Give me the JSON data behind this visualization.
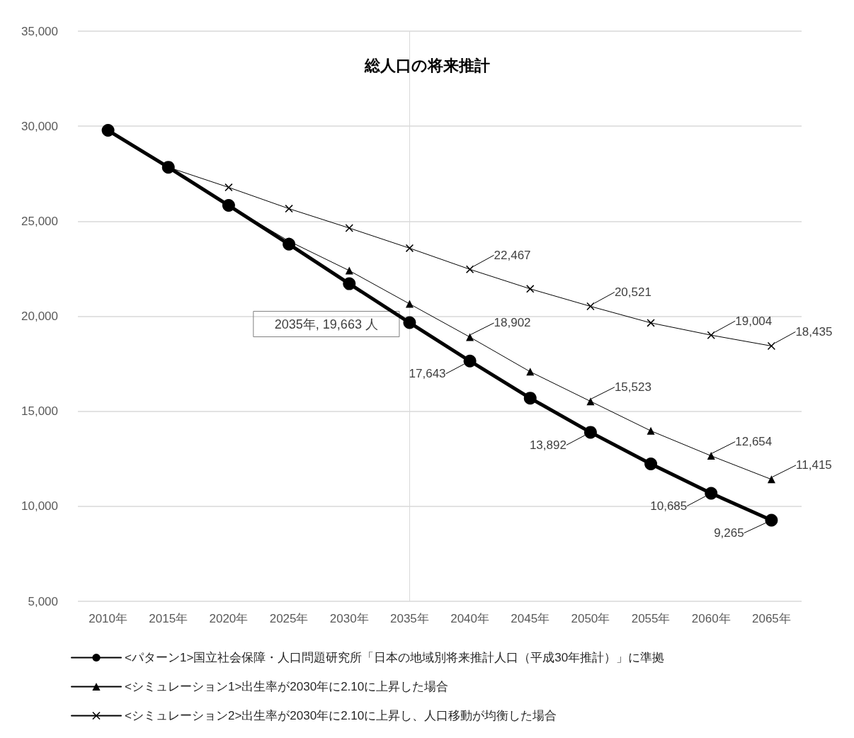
{
  "chart_data": {
    "type": "line",
    "title": "総人口の将来推計",
    "categories": [
      "2010年",
      "2015年",
      "2020年",
      "2025年",
      "2030年",
      "2035年",
      "2040年",
      "2045年",
      "2050年",
      "2055年",
      "2060年",
      "2065年"
    ],
    "ylim": [
      5000,
      35000
    ],
    "yticks": [
      {
        "value": 5000,
        "label": "5,000"
      },
      {
        "value": 10000,
        "label": "10,000"
      },
      {
        "value": 15000,
        "label": "15,000"
      },
      {
        "value": 20000,
        "label": "20,000"
      },
      {
        "value": 25000,
        "label": "25,000"
      },
      {
        "value": 30000,
        "label": "30,000"
      },
      {
        "value": 35000,
        "label": "35,000"
      }
    ],
    "grid": "y",
    "legend": "bottom",
    "line_style": "solid",
    "series": [
      {
        "name": "<パターン1>国立社会保障・人口問題研究所「日本の地域別将来推計人口（平成30年推計）」に準拠",
        "color": "#000000",
        "marker": "circle",
        "values": [
          29780,
          27840,
          25830,
          23790,
          21710,
          19663,
          17643,
          15690,
          13892,
          12230,
          10685,
          9265
        ],
        "value_labels": [
          null,
          null,
          null,
          null,
          null,
          null,
          "17,643",
          null,
          "13,892",
          null,
          "10,685",
          "9,265"
        ]
      },
      {
        "name": "<シミュレーション1>出生率が2030年に2.10に上昇した場合",
        "color": "#000000",
        "marker": "triangle",
        "values": [
          null,
          null,
          25830,
          23950,
          22400,
          20650,
          18902,
          17080,
          15523,
          13970,
          12654,
          11415
        ],
        "value_labels": [
          null,
          null,
          null,
          null,
          null,
          null,
          "18,902",
          null,
          "15,523",
          null,
          "12,654",
          "11,415"
        ]
      },
      {
        "name": "<シミュレーション2>出生率が2030年に2.10に上昇し、人口移動が均衡した場合",
        "color": "#000000",
        "marker": "cross",
        "values": [
          null,
          27840,
          26780,
          25660,
          24640,
          23580,
          22467,
          21440,
          20521,
          19650,
          19004,
          18435
        ],
        "value_labels": [
          null,
          null,
          null,
          null,
          null,
          null,
          "22,467",
          null,
          "20,521",
          null,
          "19,004",
          "18,435"
        ]
      }
    ],
    "ref_lines": [
      {
        "axis": "x",
        "value": "2035年",
        "color": "#d9d9d9"
      }
    ],
    "annotations": [
      {
        "text": "2035年, 19,663 人",
        "x": "2035年",
        "y": 19663
      }
    ]
  }
}
